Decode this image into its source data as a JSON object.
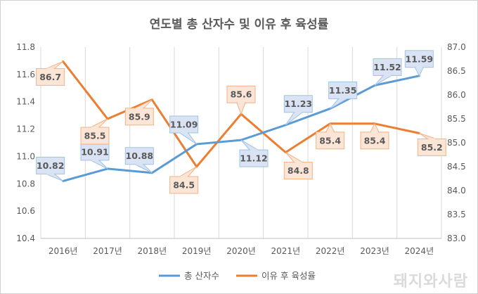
{
  "watermark": "돼지와사람",
  "colors": {
    "series1": "#5b9bd5",
    "series2": "#ed7d31",
    "label1_bg": "#dae3f3",
    "label1_border": "#9dc3e6",
    "label2_bg": "#fbe5d6",
    "label2_border": "#f4b183",
    "grid": "#d9d9d9",
    "text": "#595959"
  },
  "chart_data": {
    "type": "line",
    "title": "연도별 총 산자수 및 이유 후 육성률",
    "categories": [
      "2016년",
      "2017년",
      "2018년",
      "2019년",
      "2020년",
      "2021년",
      "2022년",
      "2023년",
      "2024년"
    ],
    "series": [
      {
        "name": "총 산자수",
        "axis": "left",
        "values": [
          10.82,
          10.91,
          10.88,
          11.09,
          11.12,
          11.23,
          11.35,
          11.52,
          11.59
        ],
        "labels": [
          "10.82",
          "10.91",
          "10.88",
          "11.09",
          "11.12",
          "11.23",
          "11.35",
          "11.52",
          "11.59"
        ]
      },
      {
        "name": "이유 후 육성율",
        "axis": "right",
        "values": [
          86.7,
          85.5,
          85.9,
          84.5,
          85.6,
          84.8,
          85.4,
          85.4,
          85.2
        ],
        "labels": [
          "86.7",
          "85.5",
          "85.9",
          "84.5",
          "85.6",
          "84.8",
          "85.4",
          "85.4",
          "85.2"
        ]
      }
    ],
    "y_left": {
      "min": 10.4,
      "max": 11.8,
      "step": 0.2,
      "ticks": [
        "10.4",
        "10.6",
        "10.8",
        "11.0",
        "11.2",
        "11.4",
        "11.6",
        "11.8"
      ]
    },
    "y_right": {
      "min": 83.0,
      "max": 87.0,
      "step": 0.5,
      "ticks": [
        "83.0",
        "83.5",
        "84.0",
        "84.5",
        "85.0",
        "85.5",
        "86.0",
        "86.5",
        "87.0"
      ]
    },
    "grid": "vertical",
    "legend_position": "bottom"
  }
}
